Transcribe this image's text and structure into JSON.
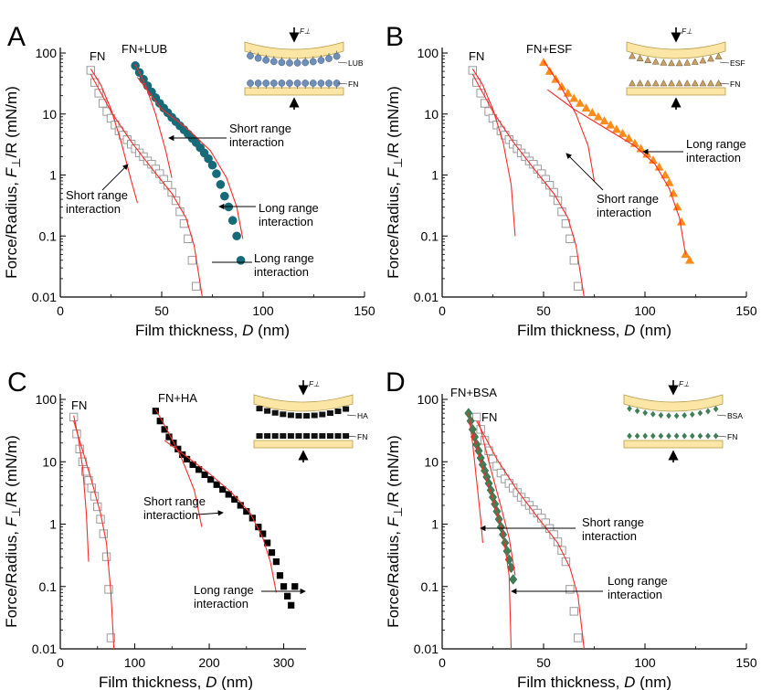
{
  "colors": {
    "fn_marker": "#9a9a9a",
    "fit_line": "#ff2a2a",
    "axis": "#000000",
    "lub": "#176b78",
    "esf": "#ff8c1a",
    "ha": "#000000",
    "bsa": "#3f7f55",
    "surface_fill": "#fbe6a6",
    "surface_edge": "#b89b4a"
  },
  "chart_data": [
    {
      "panel": "A",
      "type": "scatter",
      "xlabel_main": "Film thickness, ",
      "xlabel_var": "D",
      "xlabel_unit": " (nm)",
      "ylabel_main": "Force/Radius, ",
      "ylabel_var": "F",
      "ylabel_sub": "⊥",
      "ylabel_rest": "/R (mN/m)",
      "xlim": [
        0,
        150
      ],
      "ylim": [
        0.01,
        100
      ],
      "yscale": "log",
      "xticks": [
        "0",
        "50",
        "100",
        "150"
      ],
      "yticks": [
        "0.01",
        "0.1",
        "1",
        "10",
        "100"
      ],
      "series": [
        {
          "name": "FN",
          "marker": "square",
          "color": "#9a9a9a",
          "x": [
            15,
            17,
            19,
            21,
            23,
            25,
            27,
            29,
            31,
            33,
            35,
            37,
            39,
            41,
            43,
            45,
            47,
            49,
            51,
            53,
            55,
            57,
            59,
            61,
            63,
            65,
            67
          ],
          "y": [
            52,
            33,
            22,
            15,
            11,
            8.5,
            6.6,
            5.3,
            4.5,
            3.8,
            3.2,
            2.7,
            2.3,
            2.0,
            1.7,
            1.5,
            1.25,
            1.05,
            0.85,
            0.68,
            0.52,
            0.38,
            0.25,
            0.16,
            0.09,
            0.04,
            0.015
          ]
        },
        {
          "name": "FN+LUB",
          "marker": "circle",
          "color": "#176b78",
          "x": [
            37,
            39,
            41,
            43,
            45,
            47,
            49,
            51,
            53,
            55,
            57,
            59,
            61,
            63,
            65,
            67,
            69,
            71,
            73,
            75,
            77,
            79,
            81,
            83,
            85,
            87,
            89
          ],
          "y": [
            62,
            48,
            37,
            29,
            23,
            18.5,
            15,
            12.5,
            10.5,
            8.8,
            7.5,
            6.4,
            5.5,
            4.7,
            4,
            3.4,
            2.8,
            2.3,
            1.85,
            1.45,
            1.05,
            0.7,
            0.45,
            0.3,
            0.18,
            0.1,
            0.04
          ]
        }
      ],
      "series_labels": [
        "FN",
        "FN+LUB"
      ],
      "fits": [
        {
          "x": [
            15,
            20,
            25,
            30,
            35,
            38
          ],
          "y": [
            55,
            30,
            12,
            3.5,
            0.8,
            0.35
          ]
        },
        {
          "x": [
            15,
            25,
            35,
            45,
            55,
            62,
            66,
            70
          ],
          "y": [
            45,
            11,
            3.5,
            1.3,
            0.5,
            0.2,
            0.07,
            0.01
          ]
        },
        {
          "x": [
            37,
            42,
            47,
            52,
            55
          ],
          "y": [
            65,
            30,
            10,
            2.5,
            0.9
          ]
        },
        {
          "x": [
            38,
            50,
            62,
            74,
            82,
            87,
            90
          ],
          "y": [
            40,
            12,
            6,
            2.5,
            0.9,
            0.3,
            0.09
          ]
        }
      ],
      "annotations": [
        {
          "lines": [
            "Short range",
            "interaction"
          ]
        },
        {
          "lines": [
            "Long range",
            "interaction"
          ]
        },
        {
          "lines": [
            "Short range",
            "interaction"
          ]
        },
        {
          "lines": [
            "Long range",
            "interaction"
          ]
        }
      ],
      "inset": {
        "top_label": "LUB",
        "bottom_label": "FN",
        "force_label": "F⊥",
        "style": "circle",
        "color": "#6f8fb8"
      }
    },
    {
      "panel": "B",
      "type": "scatter",
      "xlabel_main": "Film thickness, ",
      "xlabel_var": "D",
      "xlabel_unit": " (nm)",
      "ylabel_main": "Force/Radius, ",
      "ylabel_var": "F",
      "ylabel_sub": "⊥",
      "ylabel_rest": "/R (mN/m)",
      "xlim": [
        0,
        150
      ],
      "ylim": [
        0.01,
        100
      ],
      "yscale": "log",
      "xticks": [
        "0",
        "50",
        "100",
        "150"
      ],
      "yticks": [
        "0.01",
        "0.1",
        "1",
        "10",
        "100"
      ],
      "series": [
        {
          "name": "FN",
          "marker": "square",
          "color": "#9a9a9a",
          "x": [
            15,
            17,
            19,
            21,
            23,
            25,
            27,
            29,
            31,
            33,
            35,
            37,
            39,
            41,
            43,
            45,
            47,
            49,
            51,
            53,
            55,
            57,
            59,
            61,
            63,
            65,
            67
          ],
          "y": [
            52,
            33,
            22,
            15,
            11,
            8.5,
            6.6,
            5.3,
            4.5,
            3.8,
            3.2,
            2.7,
            2.3,
            2.0,
            1.7,
            1.5,
            1.25,
            1.05,
            0.85,
            0.68,
            0.52,
            0.38,
            0.25,
            0.16,
            0.09,
            0.04,
            0.015
          ]
        },
        {
          "name": "FN+ESF",
          "marker": "triangle",
          "color": "#ff8c1a",
          "x": [
            50,
            53,
            56,
            59,
            62,
            65,
            68,
            71,
            74,
            77,
            80,
            83,
            86,
            89,
            92,
            95,
            98,
            101,
            104,
            107,
            110,
            112,
            114,
            116,
            118,
            120,
            122
          ],
          "y": [
            70,
            50,
            37,
            28,
            22,
            18,
            15,
            12.5,
            10.5,
            9,
            7.7,
            6.6,
            5.6,
            4.8,
            4,
            3.3,
            2.7,
            2.2,
            1.75,
            1.35,
            1,
            0.75,
            0.5,
            0.3,
            0.17,
            0.05,
            0.04
          ]
        }
      ],
      "series_labels": [
        "FN",
        "FN+ESF"
      ],
      "fits": [
        {
          "x": [
            15,
            20,
            25,
            30,
            34,
            36
          ],
          "y": [
            55,
            30,
            12,
            3.5,
            0.7,
            0.1
          ]
        },
        {
          "x": [
            15,
            25,
            35,
            45,
            55,
            62,
            66,
            70
          ],
          "y": [
            45,
            11,
            3.5,
            1.3,
            0.5,
            0.2,
            0.07,
            0.01
          ]
        },
        {
          "x": [
            50,
            58,
            66,
            72,
            75
          ],
          "y": [
            75,
            30,
            10,
            3,
            0.8
          ]
        },
        {
          "x": [
            52,
            65,
            80,
            95,
            105,
            112,
            117,
            120
          ],
          "y": [
            25,
            12,
            6,
            3,
            1.5,
            0.6,
            0.2,
            0.05
          ]
        }
      ],
      "annotations": [
        {
          "lines": [
            "Long range",
            "interaction"
          ]
        },
        {
          "lines": [
            "Short range",
            "interaction"
          ]
        }
      ],
      "inset": {
        "top_label": "ESF",
        "bottom_label": "FN",
        "force_label": "F⊥",
        "style": "triangle",
        "color": "#c9a066"
      }
    },
    {
      "panel": "C",
      "type": "scatter",
      "xlabel_main": "Film thickness, ",
      "xlabel_var": "D",
      "xlabel_unit": " (nm)",
      "ylabel_main": "Force/Radius, ",
      "ylabel_var": "F",
      "ylabel_sub": "⊥",
      "ylabel_rest": "/R (mN/m)",
      "xlim": [
        0,
        330
      ],
      "ylim": [
        0.01,
        100
      ],
      "yscale": "log",
      "xticks": [
        "0",
        "100",
        "200",
        "300"
      ],
      "yticks": [
        "0.01",
        "0.1",
        "1",
        "10",
        "100"
      ],
      "series": [
        {
          "name": "FN",
          "marker": "square",
          "color": "#9a9a9a",
          "x": [
            18,
            22,
            26,
            30,
            34,
            38,
            42,
            46,
            50,
            54,
            58,
            62,
            65,
            68
          ],
          "y": [
            52,
            28,
            16,
            10,
            7,
            5,
            3.8,
            2.8,
            1.9,
            1.2,
            0.7,
            0.3,
            0.09,
            0.015
          ]
        },
        {
          "name": "FN+HA",
          "marker": "square-filled",
          "color": "#000000",
          "x": [
            128,
            134,
            140,
            146,
            152,
            158,
            164,
            170,
            178,
            186,
            194,
            202,
            210,
            218,
            226,
            234,
            242,
            250,
            258,
            266,
            272,
            278,
            284,
            290,
            295,
            300,
            305,
            310,
            315
          ],
          "y": [
            65,
            45,
            33,
            25,
            20,
            16,
            13,
            11,
            9,
            7.5,
            6.2,
            5.2,
            4.3,
            3.6,
            3,
            2.5,
            2,
            1.6,
            1.25,
            0.9,
            0.7,
            0.5,
            0.35,
            0.25,
            0.15,
            0.1,
            0.07,
            0.05,
            0.1
          ]
        }
      ],
      "series_labels": [
        "FN",
        "FN+HA"
      ],
      "fits": [
        {
          "x": [
            18,
            24,
            30,
            35,
            38
          ],
          "y": [
            55,
            25,
            8,
            1.5,
            0.25
          ]
        },
        {
          "x": [
            18,
            30,
            42,
            54,
            62,
            68,
            72
          ],
          "y": [
            45,
            15,
            5,
            1.5,
            0.5,
            0.08,
            0.01
          ]
        },
        {
          "x": [
            128,
            145,
            162,
            180,
            190
          ],
          "y": [
            70,
            30,
            12,
            3.5,
            0.9
          ]
        },
        {
          "x": [
            140,
            170,
            200,
            230,
            255,
            272,
            282,
            290
          ],
          "y": [
            22,
            12,
            6.5,
            3.2,
            1.5,
            0.6,
            0.25,
            0.08
          ]
        }
      ],
      "annotations": [
        {
          "lines": [
            "Short range",
            "interaction"
          ]
        },
        {
          "lines": [
            "Long range",
            "interaction"
          ]
        }
      ],
      "inset": {
        "top_label": "HA",
        "bottom_label": "FN",
        "force_label": "F⊥",
        "style": "block",
        "color": "#111111"
      }
    },
    {
      "panel": "D",
      "type": "scatter",
      "xlabel_main": "Film thickness, ",
      "xlabel_var": "D",
      "xlabel_unit": " (nm)",
      "ylabel_main": "Force/Radius, ",
      "ylabel_var": "F",
      "ylabel_sub": "⊥",
      "ylabel_rest": "/R (mN/m)",
      "xlim": [
        0,
        150
      ],
      "ylim": [
        0.01,
        100
      ],
      "yscale": "log",
      "xticks": [
        "0",
        "50",
        "100",
        "150"
      ],
      "yticks": [
        "0.01",
        "0.1",
        "1",
        "10",
        "100"
      ],
      "series": [
        {
          "name": "FN",
          "marker": "square",
          "color": "#9a9a9a",
          "x": [
            17,
            19,
            21,
            23,
            25,
            27,
            29,
            31,
            33,
            35,
            37,
            39,
            41,
            43,
            45,
            47,
            49,
            51,
            53,
            55,
            57,
            59,
            61,
            63,
            65,
            67
          ],
          "y": [
            52,
            33,
            22,
            15,
            11,
            8.5,
            6.6,
            5.3,
            4.5,
            3.8,
            3.2,
            2.7,
            2.3,
            2.0,
            1.7,
            1.5,
            1.25,
            1.05,
            0.85,
            0.68,
            0.52,
            0.38,
            0.25,
            0.09,
            0.04,
            0.015
          ]
        },
        {
          "name": "FN+BSA",
          "marker": "diamond",
          "color": "#3f7f55",
          "x": [
            13,
            14,
            15,
            16,
            17,
            18,
            19,
            20,
            21,
            22,
            23,
            24,
            25,
            26,
            27,
            28,
            29,
            30,
            31,
            32,
            33,
            34,
            35
          ],
          "y": [
            60,
            45,
            33,
            25,
            19,
            15,
            11.5,
            9,
            7.2,
            5.7,
            4.5,
            3.5,
            2.7,
            2.1,
            1.6,
            1.2,
            0.9,
            0.68,
            0.5,
            0.37,
            0.27,
            0.2,
            0.13
          ]
        }
      ],
      "series_labels": [
        "FN+BSA",
        "FN"
      ],
      "fits": [
        {
          "x": [
            13,
            15,
            17,
            19,
            20
          ],
          "y": [
            60,
            20,
            5,
            1.2,
            0.5
          ]
        },
        {
          "x": [
            15,
            20,
            25,
            30,
            33,
            34
          ],
          "y": [
            30,
            8,
            2.5,
            0.7,
            0.15,
            0.01
          ]
        },
        {
          "x": [
            18,
            23,
            28,
            33,
            36
          ],
          "y": [
            45,
            10,
            2.5,
            0.6,
            0.15
          ]
        },
        {
          "x": [
            17,
            27,
            37,
            47,
            57,
            63,
            67,
            70
          ],
          "y": [
            45,
            11,
            3.5,
            1.3,
            0.5,
            0.2,
            0.07,
            0.01
          ]
        }
      ],
      "annotations": [
        {
          "lines": [
            "Short range",
            "interaction"
          ]
        },
        {
          "lines": [
            "Long range",
            "interaction"
          ]
        }
      ],
      "inset": {
        "top_label": "BSA",
        "bottom_label": "FN",
        "force_label": "F⊥",
        "style": "diamond",
        "color": "#3f7f55"
      }
    }
  ]
}
